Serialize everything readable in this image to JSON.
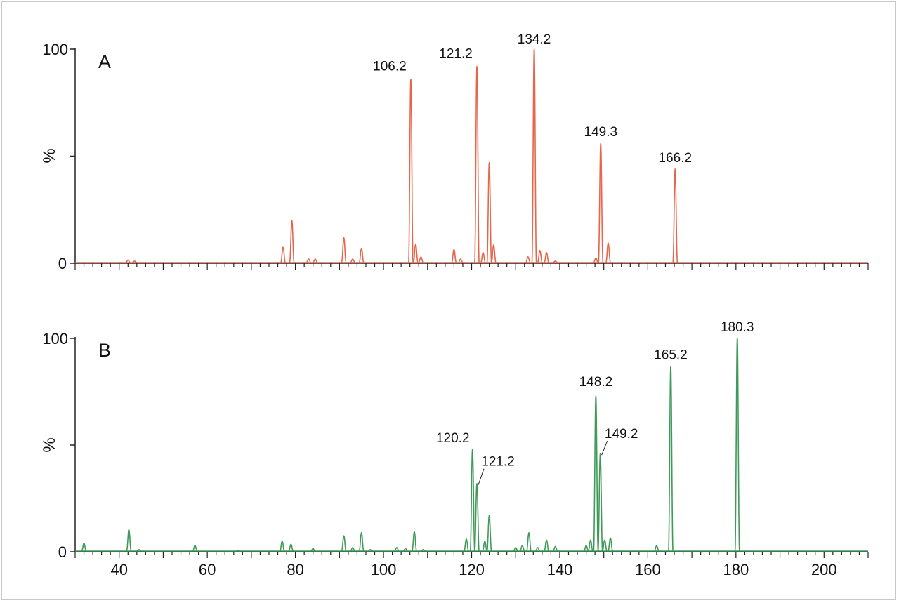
{
  "chart_data": [
    {
      "type": "line",
      "panel_label": "A",
      "ylabel": "%",
      "color": "#e8654a",
      "xlim": [
        30,
        210
      ],
      "ylim": [
        0,
        100
      ],
      "y_ticks": [
        "0",
        "100"
      ],
      "peaks": [
        {
          "x": 42.0,
          "y": 1.5
        },
        {
          "x": 43.5,
          "y": 1.0
        },
        {
          "x": 77.2,
          "y": 7.5
        },
        {
          "x": 79.2,
          "y": 20.0
        },
        {
          "x": 83.0,
          "y": 2.0
        },
        {
          "x": 84.5,
          "y": 2.0
        },
        {
          "x": 91.0,
          "y": 12.0
        },
        {
          "x": 93.0,
          "y": 2.0
        },
        {
          "x": 95.0,
          "y": 7.0
        },
        {
          "x": 106.2,
          "y": 86.0
        },
        {
          "x": 107.3,
          "y": 9.0
        },
        {
          "x": 108.5,
          "y": 3.0
        },
        {
          "x": 116.0,
          "y": 6.5
        },
        {
          "x": 117.5,
          "y": 2.0
        },
        {
          "x": 121.2,
          "y": 92.0
        },
        {
          "x": 122.6,
          "y": 5.0
        },
        {
          "x": 124.0,
          "y": 47.0
        },
        {
          "x": 125.0,
          "y": 8.5
        },
        {
          "x": 132.8,
          "y": 3.0
        },
        {
          "x": 134.2,
          "y": 100.0
        },
        {
          "x": 135.5,
          "y": 6.0
        },
        {
          "x": 137.0,
          "y": 5.0
        },
        {
          "x": 139.0,
          "y": 1.0
        },
        {
          "x": 148.2,
          "y": 2.5
        },
        {
          "x": 149.3,
          "y": 56.0
        },
        {
          "x": 151.0,
          "y": 9.5
        },
        {
          "x": 166.2,
          "y": 44.0
        }
      ],
      "annotations": [
        {
          "x": 106.2,
          "y": 86.0,
          "text": "106.2"
        },
        {
          "x": 121.2,
          "y": 92.0,
          "text": "121.2"
        },
        {
          "x": 134.2,
          "y": 100.0,
          "text": "134.2"
        },
        {
          "x": 149.3,
          "y": 56.0,
          "text": "149.3"
        },
        {
          "x": 166.2,
          "y": 44.0,
          "text": "166.2"
        }
      ]
    },
    {
      "type": "line",
      "panel_label": "B",
      "ylabel": "%",
      "color": "#3f9a58",
      "xlim": [
        30,
        210
      ],
      "ylim": [
        0,
        100
      ],
      "y_ticks": [
        "0",
        "100"
      ],
      "x_ticks": [
        "40",
        "60",
        "80",
        "100",
        "120",
        "140",
        "160",
        "180",
        "200"
      ],
      "x_tick_values": [
        40,
        60,
        80,
        100,
        120,
        140,
        160,
        180,
        200
      ],
      "peaks": [
        {
          "x": 32.0,
          "y": 4.0
        },
        {
          "x": 42.2,
          "y": 10.5
        },
        {
          "x": 44.5,
          "y": 1.0
        },
        {
          "x": 57.2,
          "y": 3.0
        },
        {
          "x": 67.0,
          "y": 0.5
        },
        {
          "x": 77.0,
          "y": 5.0
        },
        {
          "x": 79.0,
          "y": 3.5
        },
        {
          "x": 84.0,
          "y": 1.5
        },
        {
          "x": 91.0,
          "y": 7.5
        },
        {
          "x": 93.0,
          "y": 2.0
        },
        {
          "x": 95.0,
          "y": 9.0
        },
        {
          "x": 97.0,
          "y": 1.0
        },
        {
          "x": 103.0,
          "y": 2.0
        },
        {
          "x": 105.0,
          "y": 1.5
        },
        {
          "x": 107.0,
          "y": 9.5
        },
        {
          "x": 109.0,
          "y": 1.0
        },
        {
          "x": 118.8,
          "y": 6.0
        },
        {
          "x": 120.2,
          "y": 48.0
        },
        {
          "x": 121.2,
          "y": 32.0
        },
        {
          "x": 123.0,
          "y": 5.0
        },
        {
          "x": 124.0,
          "y": 17.0
        },
        {
          "x": 130.0,
          "y": 2.0
        },
        {
          "x": 131.5,
          "y": 3.0
        },
        {
          "x": 133.0,
          "y": 9.0
        },
        {
          "x": 135.0,
          "y": 2.0
        },
        {
          "x": 137.0,
          "y": 5.5
        },
        {
          "x": 139.0,
          "y": 2.5
        },
        {
          "x": 146.0,
          "y": 3.0
        },
        {
          "x": 147.0,
          "y": 5.5
        },
        {
          "x": 148.2,
          "y": 73.0
        },
        {
          "x": 149.2,
          "y": 46.0
        },
        {
          "x": 150.2,
          "y": 5.5
        },
        {
          "x": 151.5,
          "y": 6.5
        },
        {
          "x": 162.0,
          "y": 3.0
        },
        {
          "x": 165.2,
          "y": 87.0
        },
        {
          "x": 180.3,
          "y": 100.0
        }
      ],
      "annotations": [
        {
          "x": 120.2,
          "y": 48.0,
          "text": "120.2"
        },
        {
          "x": 121.2,
          "y": 32.0,
          "text": "121.2"
        },
        {
          "x": 148.2,
          "y": 73.0,
          "text": "148.2"
        },
        {
          "x": 149.2,
          "y": 46.0,
          "text": "149.2"
        },
        {
          "x": 165.2,
          "y": 87.0,
          "text": "165.2"
        },
        {
          "x": 180.3,
          "y": 100.0,
          "text": "180.3"
        }
      ]
    }
  ]
}
